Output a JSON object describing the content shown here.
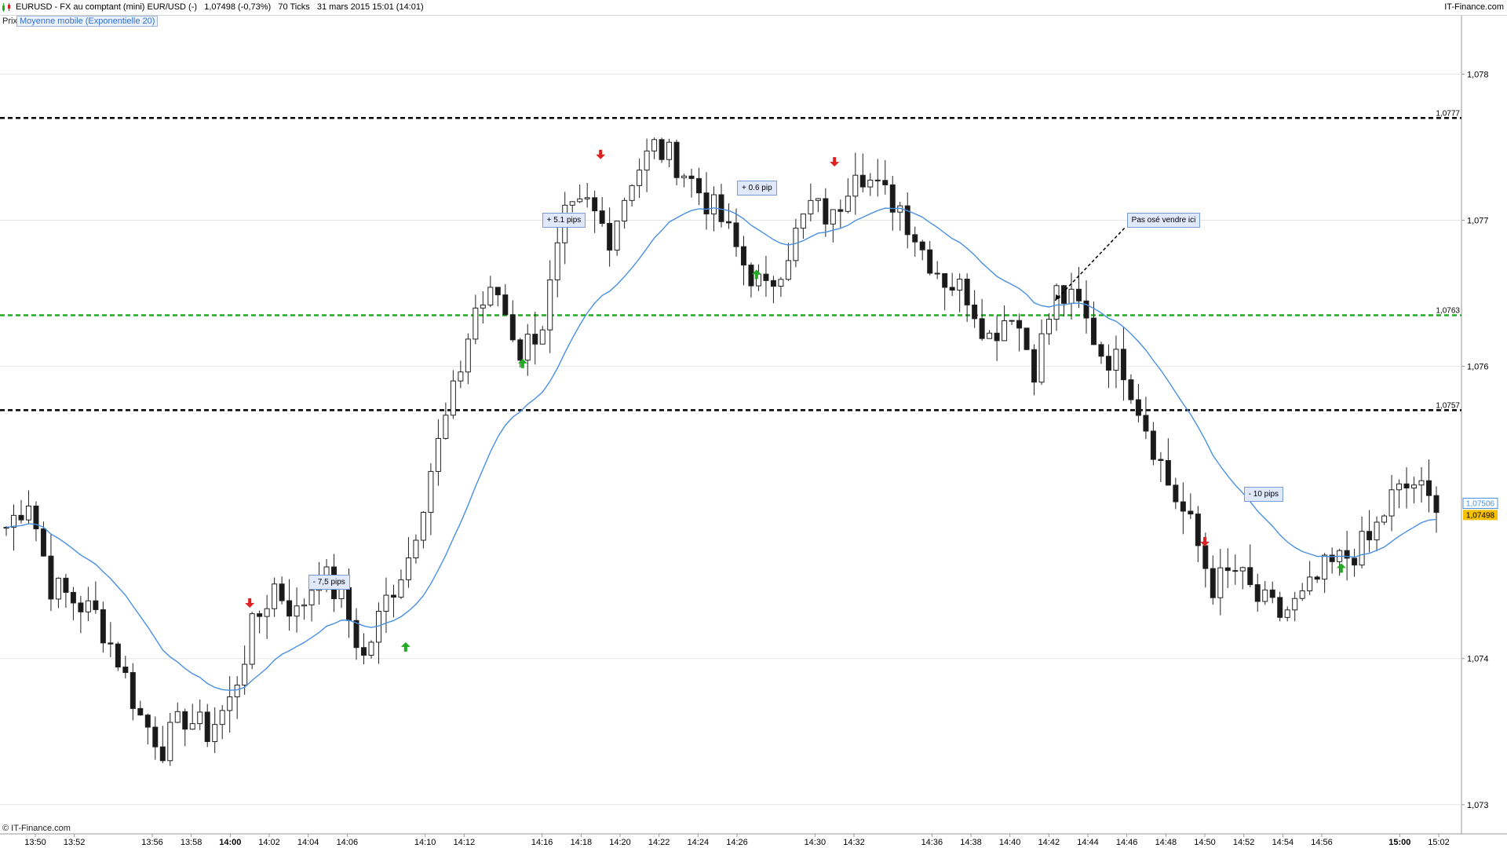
{
  "header": {
    "title": "EURUSD - FX au comptant (mini) EUR/USD (-)   1,07498 (-0,73%)   70 Ticks   31 mars 2015 15:01 (14:01)",
    "brand": "IT-Finance.com"
  },
  "legend": {
    "prix": "Prix",
    "ma_label": "Moyenne mobile (Exponentielle 20)"
  },
  "footer": {
    "copyright": "© IT-Finance.com"
  },
  "colors": {
    "up_candle_fill": "#ffffff",
    "down_candle_fill": "#1a1a1a",
    "ema_line": "#4a90e2",
    "resistance_line": "#000000",
    "support_line": "#22aa22",
    "buy_arrow": "#22aa22",
    "sell_arrow": "#dd2222",
    "current_price_tag": "#f5c000",
    "ema_price_tag": "#4a90e2"
  },
  "chart_data": {
    "type": "candlestick",
    "title": "EURUSD - FX au comptant (mini) EUR/USD (-)",
    "ylim": [
      1.0728,
      1.0784
    ],
    "y_ticks": [
      "1,073",
      "1,074",
      "1,076",
      "1,077",
      "1,078"
    ],
    "x_ticks": [
      "13:50",
      "13:52",
      "13:56",
      "13:58",
      "14:00",
      "14:02",
      "14:04",
      "14:06",
      "14:10",
      "14:12",
      "14:16",
      "14:18",
      "14:20",
      "14:22",
      "14:24",
      "14:26",
      "14:30",
      "14:32",
      "14:36",
      "14:38",
      "14:40",
      "14:42",
      "14:44",
      "14:46",
      "14:48",
      "14:50",
      "14:52",
      "14:54",
      "14:56",
      "15:00",
      "15:02"
    ],
    "bold_ticks": [
      "14:00",
      "15:00"
    ],
    "close_path": [
      1.0749,
      1.0751,
      1.0745,
      1.0744,
      1.0743,
      1.074,
      1.0736,
      1.0734,
      1.0736,
      1.0735,
      1.0737,
      1.0742,
      1.0745,
      1.0743,
      1.0746,
      1.0744,
      1.074,
      1.0744,
      1.0747,
      1.0753,
      1.0758,
      1.0764,
      1.0765,
      1.0761,
      1.0763,
      1.077,
      1.0771,
      1.0769,
      1.0773,
      1.0775,
      1.0774,
      1.0772,
      1.077,
      1.0767,
      1.0765,
      1.0768,
      1.0771,
      1.077,
      1.0774,
      1.0772,
      1.0771,
      1.0768,
      1.0766,
      1.0765,
      1.0762,
      1.0764,
      1.076,
      1.0765,
      1.0764,
      1.0761,
      1.076,
      1.0756,
      1.0752,
      1.0749,
      1.0745,
      1.0746,
      1.0744,
      1.0743,
      1.0744,
      1.0746,
      1.0747,
      1.0748,
      1.0751,
      1.0752,
      1.075
    ],
    "candles_per_step": 3,
    "ema_period": 20,
    "ema_last": "1,07506",
    "last_price": "1,07498",
    "horizontal_lines": [
      {
        "value": 1.0777,
        "label": "1,0777",
        "style": "dashed",
        "color": "#000000"
      },
      {
        "value": 1.07635,
        "label": "1,0763",
        "style": "dashed",
        "color": "#22aa22"
      },
      {
        "value": 1.0757,
        "label": "1,0757",
        "style": "dashed",
        "color": "#000000"
      }
    ],
    "annotations": [
      {
        "text": "- 7,5 pips",
        "x": "14:04",
        "y": 1.07452
      },
      {
        "text": "+ 5.1 pips",
        "x": "14:16",
        "y": 1.077
      },
      {
        "text": "+ 0.6 pip",
        "x": "14:26",
        "y": 1.07722
      },
      {
        "text": "Pas osé vendre ici",
        "x": "14:46",
        "y": 1.077
      },
      {
        "text": "- 10 pips",
        "x": "14:52",
        "y": 1.07512
      }
    ],
    "signals": [
      {
        "type": "sell",
        "x": "14:01",
        "y": 1.07438
      },
      {
        "type": "buy",
        "x": "14:09",
        "y": 1.07408
      },
      {
        "type": "buy",
        "x": "14:15",
        "y": 1.07602
      },
      {
        "type": "sell",
        "x": "14:19",
        "y": 1.07745
      },
      {
        "type": "buy",
        "x": "14:27",
        "y": 1.07663
      },
      {
        "type": "sell",
        "x": "14:31",
        "y": 1.0774
      },
      {
        "type": "sell",
        "x": "14:50",
        "y": 1.0748
      },
      {
        "type": "buy",
        "x": "14:57",
        "y": 1.07462
      }
    ]
  }
}
